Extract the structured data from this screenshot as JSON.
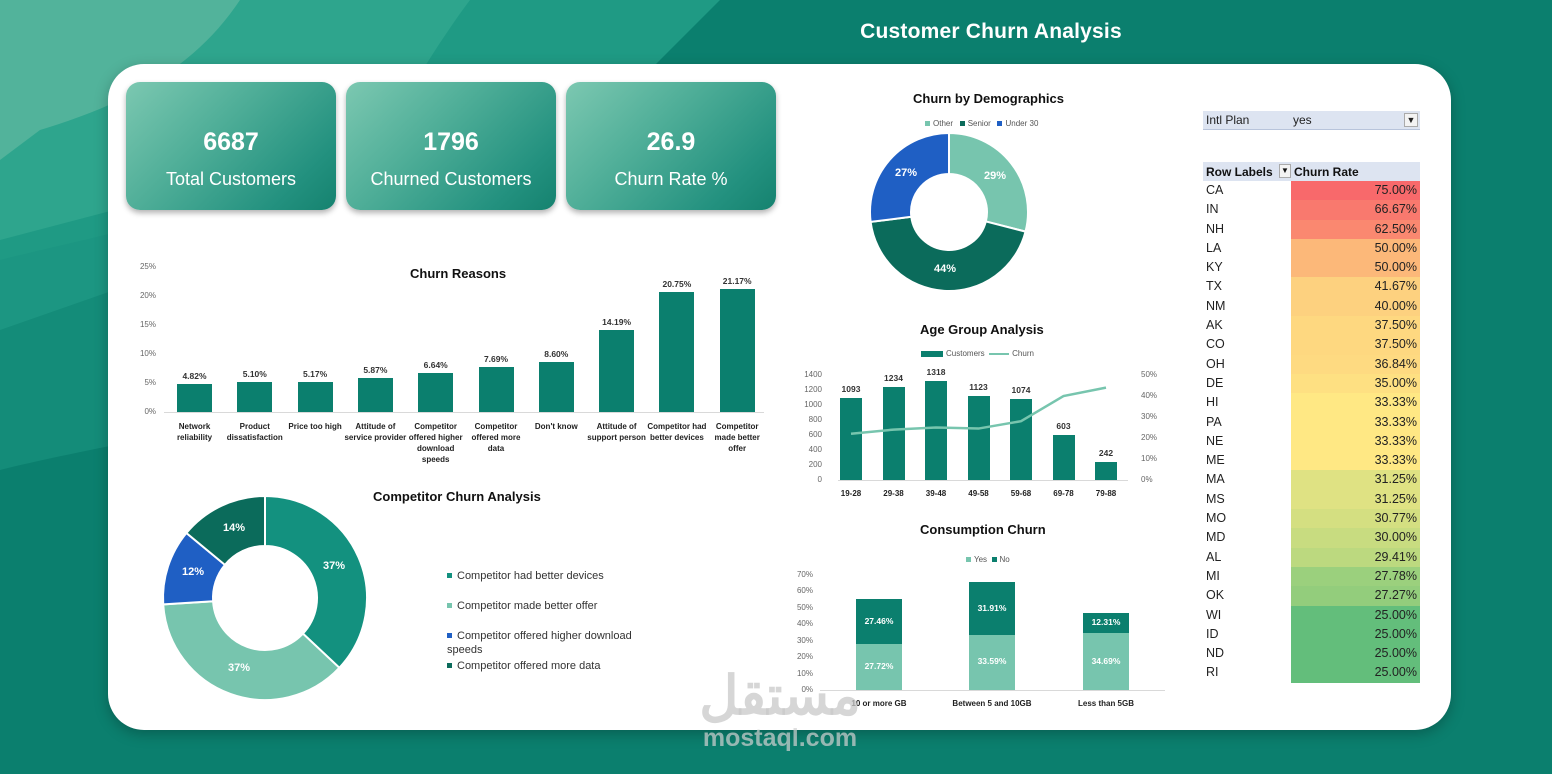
{
  "header": {
    "title": "Customer Churn Analysis"
  },
  "kpis": [
    {
      "value": "6687",
      "label": "Total Customers"
    },
    {
      "value": "1796",
      "label": "Churned Customers"
    },
    {
      "value": "26.9",
      "label": "Churn Rate %"
    }
  ],
  "colors": {
    "primary": "#0b7f6e",
    "teal": "#13917f",
    "light_teal": "#77c5ae",
    "dark_teal": "#0b6b5b",
    "blue": "#1f5fc4",
    "table_header": "#dde4f1"
  },
  "filter": {
    "field": "Intl Plan",
    "value": "yes",
    "icon": "filter-icon"
  },
  "pivot": {
    "headers": {
      "row_labels": "Row Labels",
      "value": "Churn Rate"
    },
    "rows": [
      {
        "state": "CA",
        "rate": "75.00%",
        "color": "#f8696b"
      },
      {
        "state": "IN",
        "rate": "66.67%",
        "color": "#f9796e"
      },
      {
        "state": "NH",
        "rate": "62.50%",
        "color": "#fa8870"
      },
      {
        "state": "LA",
        "rate": "50.00%",
        "color": "#fcb879"
      },
      {
        "state": "KY",
        "rate": "50.00%",
        "color": "#fcb879"
      },
      {
        "state": "TX",
        "rate": "41.67%",
        "color": "#fdd17f"
      },
      {
        "state": "NM",
        "rate": "40.00%",
        "color": "#fdd17f"
      },
      {
        "state": "AK",
        "rate": "37.50%",
        "color": "#fed880"
      },
      {
        "state": "CO",
        "rate": "37.50%",
        "color": "#fed880"
      },
      {
        "state": "OH",
        "rate": "36.84%",
        "color": "#feda81"
      },
      {
        "state": "DE",
        "rate": "35.00%",
        "color": "#fee082"
      },
      {
        "state": "HI",
        "rate": "33.33%",
        "color": "#ffe884"
      },
      {
        "state": "PA",
        "rate": "33.33%",
        "color": "#ffe884"
      },
      {
        "state": "NE",
        "rate": "33.33%",
        "color": "#ffe884"
      },
      {
        "state": "ME",
        "rate": "33.33%",
        "color": "#ffe884"
      },
      {
        "state": "MA",
        "rate": "31.25%",
        "color": "#dfe283"
      },
      {
        "state": "MS",
        "rate": "31.25%",
        "color": "#dfe283"
      },
      {
        "state": "MO",
        "rate": "30.77%",
        "color": "#d4df81"
      },
      {
        "state": "MD",
        "rate": "30.00%",
        "color": "#c8dc80"
      },
      {
        "state": "AL",
        "rate": "29.41%",
        "color": "#bcd97f"
      },
      {
        "state": "MI",
        "rate": "27.78%",
        "color": "#9bd07d"
      },
      {
        "state": "OK",
        "rate": "27.27%",
        "color": "#93cd7c"
      },
      {
        "state": "WI",
        "rate": "25.00%",
        "color": "#63be7b"
      },
      {
        "state": "ID",
        "rate": "25.00%",
        "color": "#63be7b"
      },
      {
        "state": "ND",
        "rate": "25.00%",
        "color": "#63be7b"
      },
      {
        "state": "RI",
        "rate": "25.00%",
        "color": "#63be7b"
      }
    ]
  },
  "watermark": {
    "arabic": "مستقل",
    "latin": "mostaql.com"
  },
  "chart_data": [
    {
      "id": "churn_reasons",
      "type": "bar",
      "title": "Churn Reasons",
      "categories": [
        "Network reliability",
        "Product dissatisfaction",
        "Price too high",
        "Attitude of service provider",
        "Competitor offered higher download speeds",
        "Competitor offered more data",
        "Don't know",
        "Attitude of support person",
        "Competitor had better devices",
        "Competitor made better offer"
      ],
      "values": [
        4.82,
        5.1,
        5.17,
        5.87,
        6.64,
        7.69,
        8.6,
        14.19,
        20.75,
        21.17
      ],
      "labels": [
        "4.82%",
        "5.10%",
        "5.17%",
        "5.87%",
        "6.64%",
        "7.69%",
        "8.60%",
        "14.19%",
        "20.75%",
        "21.17%"
      ],
      "yticks": [
        "0%",
        "5%",
        "10%",
        "15%",
        "20%",
        "25%"
      ],
      "ylim": [
        0,
        25
      ],
      "xlabel": "",
      "ylabel": "",
      "grid": false,
      "legend": "none"
    },
    {
      "id": "competitor_churn",
      "type": "pie",
      "donut": true,
      "title": "Competitor Churn Analysis",
      "categories": [
        "Competitor had better devices",
        "Competitor made better offer",
        "Competitor offered higher download speeds",
        "Competitor offered more data"
      ],
      "values": [
        37,
        37,
        12,
        14
      ],
      "labels": [
        "37%",
        "37%",
        "12%",
        "14%"
      ],
      "colors": [
        "#13917f",
        "#77c5ae",
        "#1f5fc4",
        "#0b6b5b"
      ],
      "legend_position": "right"
    },
    {
      "id": "demographics",
      "type": "pie",
      "donut": true,
      "title": "Churn by Demographics",
      "categories": [
        "Other",
        "Senior",
        "Under 30"
      ],
      "values": [
        29,
        44,
        27
      ],
      "labels": [
        "29%",
        "44%",
        "27%"
      ],
      "colors": [
        "#77c5ae",
        "#0b6b5b",
        "#1f5fc4"
      ],
      "legend_position": "top"
    },
    {
      "id": "age_group",
      "type": "bar",
      "combo": "bar+line",
      "title": "Age Group Analysis",
      "categories": [
        "19-28",
        "29-38",
        "39-48",
        "49-58",
        "59-68",
        "69-78",
        "79-88"
      ],
      "series": [
        {
          "name": "Customers",
          "type": "bar",
          "axis": "left",
          "values": [
            1093,
            1234,
            1318,
            1123,
            1074,
            603,
            242
          ]
        },
        {
          "name": "Churn",
          "type": "line",
          "axis": "right",
          "values": [
            22,
            24,
            25,
            24.5,
            28,
            40,
            44
          ]
        }
      ],
      "yticks_left": [
        "0",
        "200",
        "400",
        "600",
        "800",
        "1000",
        "1200",
        "1400"
      ],
      "yticks_right": [
        "0%",
        "10%",
        "20%",
        "30%",
        "40%",
        "50%"
      ],
      "ylim_left": [
        0,
        1400
      ],
      "ylim_right": [
        0,
        50
      ],
      "legend_position": "top"
    },
    {
      "id": "consumption",
      "type": "bar",
      "stacked": true,
      "title": "Consumption Churn",
      "categories": [
        "10 or more GB",
        "Between 5 and 10GB",
        "Less than 5GB"
      ],
      "series": [
        {
          "name": "Yes",
          "values": [
            27.72,
            33.59,
            34.69
          ],
          "labels": [
            "27.72%",
            "33.59%",
            "34.69%"
          ],
          "color": "#77c5ae"
        },
        {
          "name": "No",
          "values": [
            27.46,
            31.91,
            12.31
          ],
          "labels": [
            "27.46%",
            "31.91%",
            "12.31%"
          ],
          "color": "#0b7f6e"
        }
      ],
      "yticks": [
        "0%",
        "10%",
        "20%",
        "30%",
        "40%",
        "50%",
        "60%",
        "70%"
      ],
      "ylim": [
        0,
        70
      ],
      "legend_position": "top"
    }
  ]
}
